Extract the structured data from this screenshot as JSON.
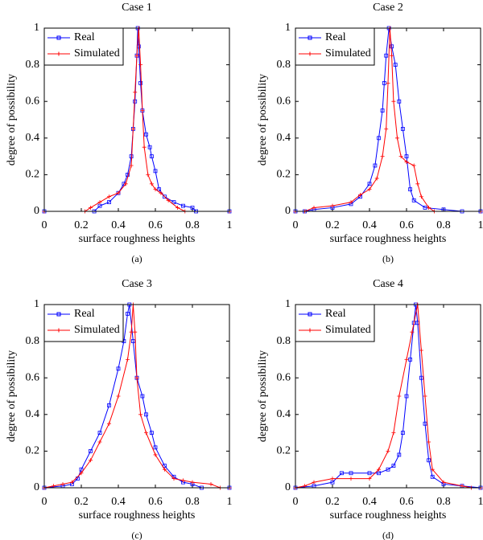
{
  "chart_data": [
    {
      "type": "line",
      "title": "Case 1",
      "xlabel": "surface roughness heights",
      "ylabel": "degree of possibility",
      "caption": "(a)",
      "xlim": [
        0,
        1
      ],
      "ylim": [
        0,
        1
      ],
      "xticks": [
        0,
        0.2,
        0.4,
        0.6,
        0.8,
        1
      ],
      "yticks": [
        0,
        0.2,
        0.4,
        0.6,
        0.8,
        1
      ],
      "legend": "upper left",
      "series": [
        {
          "name": "Real",
          "color": "#0000ff",
          "marker": "square",
          "x": [
            0,
            0.27,
            0.3,
            0.35,
            0.4,
            0.43,
            0.45,
            0.47,
            0.48,
            0.49,
            0.5,
            0.505,
            0.51,
            0.52,
            0.53,
            0.55,
            0.57,
            0.58,
            0.6,
            0.62,
            0.65,
            0.7,
            0.75,
            0.8,
            0.82,
            1
          ],
          "values": [
            0,
            0,
            0.03,
            0.05,
            0.1,
            0.15,
            0.2,
            0.3,
            0.45,
            0.6,
            0.85,
            1,
            0.9,
            0.7,
            0.55,
            0.42,
            0.35,
            0.3,
            0.22,
            0.12,
            0.08,
            0.05,
            0.03,
            0.02,
            0,
            0
          ]
        },
        {
          "name": "Simulated",
          "color": "#ff0000",
          "marker": "plus",
          "x": [
            0,
            0.22,
            0.25,
            0.3,
            0.35,
            0.4,
            0.44,
            0.47,
            0.48,
            0.49,
            0.5,
            0.51,
            0.52,
            0.53,
            0.54,
            0.56,
            0.58,
            0.6,
            0.63,
            0.67,
            0.72,
            0.76,
            1
          ],
          "values": [
            0,
            0,
            0.02,
            0.05,
            0.08,
            0.1,
            0.15,
            0.25,
            0.45,
            0.65,
            0.85,
            1,
            0.8,
            0.55,
            0.35,
            0.2,
            0.15,
            0.12,
            0.1,
            0.06,
            0.02,
            0,
            0
          ]
        }
      ]
    },
    {
      "type": "line",
      "title": "Case 2",
      "xlabel": "surface roughness heights",
      "ylabel": "degree of possibility",
      "caption": "(b)",
      "xlim": [
        0,
        1
      ],
      "ylim": [
        0,
        1
      ],
      "xticks": [
        0,
        0.2,
        0.4,
        0.6,
        0.8,
        1
      ],
      "yticks": [
        0,
        0.2,
        0.4,
        0.6,
        0.8,
        1
      ],
      "legend": "upper left",
      "series": [
        {
          "name": "Real",
          "color": "#0000ff",
          "marker": "square",
          "x": [
            0,
            0.05,
            0.1,
            0.2,
            0.3,
            0.35,
            0.4,
            0.43,
            0.45,
            0.47,
            0.48,
            0.49,
            0.505,
            0.52,
            0.54,
            0.56,
            0.58,
            0.6,
            0.62,
            0.64,
            0.7,
            0.8,
            0.9,
            1
          ],
          "values": [
            0,
            0,
            0.01,
            0.02,
            0.04,
            0.08,
            0.15,
            0.25,
            0.4,
            0.55,
            0.7,
            0.85,
            1,
            0.9,
            0.8,
            0.6,
            0.45,
            0.3,
            0.12,
            0.06,
            0.02,
            0.01,
            0,
            0
          ]
        },
        {
          "name": "Simulated",
          "color": "#ff0000",
          "marker": "plus",
          "x": [
            0,
            0.05,
            0.1,
            0.2,
            0.3,
            0.35,
            0.4,
            0.44,
            0.47,
            0.49,
            0.5,
            0.51,
            0.52,
            0.53,
            0.55,
            0.57,
            0.6,
            0.64,
            0.66,
            0.68,
            0.72,
            0.75,
            1
          ],
          "values": [
            0,
            0,
            0.02,
            0.03,
            0.05,
            0.09,
            0.12,
            0.18,
            0.3,
            0.45,
            0.7,
            1,
            0.85,
            0.6,
            0.4,
            0.3,
            0.27,
            0.25,
            0.15,
            0.08,
            0.02,
            0,
            0
          ]
        }
      ]
    },
    {
      "type": "line",
      "title": "Case 3",
      "xlabel": "surface roughness heights",
      "ylabel": "degree of possibility",
      "caption": "(c)",
      "xlim": [
        0,
        1
      ],
      "ylim": [
        0,
        1
      ],
      "xticks": [
        0,
        0.2,
        0.4,
        0.6,
        0.8,
        1
      ],
      "yticks": [
        0,
        0.2,
        0.4,
        0.6,
        0.8,
        1
      ],
      "legend": "upper left",
      "series": [
        {
          "name": "Real",
          "color": "#0000ff",
          "marker": "square",
          "x": [
            0,
            0.1,
            0.15,
            0.18,
            0.2,
            0.25,
            0.3,
            0.35,
            0.4,
            0.43,
            0.45,
            0.46,
            0.48,
            0.5,
            0.53,
            0.55,
            0.58,
            0.6,
            0.65,
            0.7,
            0.75,
            0.8,
            0.85,
            1
          ],
          "values": [
            0,
            0.01,
            0.02,
            0.05,
            0.1,
            0.2,
            0.3,
            0.45,
            0.65,
            0.8,
            0.95,
            1,
            0.8,
            0.6,
            0.5,
            0.4,
            0.3,
            0.22,
            0.12,
            0.06,
            0.03,
            0.02,
            0,
            0
          ]
        },
        {
          "name": "Simulated",
          "color": "#ff0000",
          "marker": "plus",
          "x": [
            0,
            0.05,
            0.1,
            0.15,
            0.2,
            0.25,
            0.3,
            0.35,
            0.4,
            0.45,
            0.47,
            0.48,
            0.49,
            0.5,
            0.52,
            0.55,
            0.6,
            0.65,
            0.7,
            0.75,
            0.8,
            0.9,
            0.95,
            1
          ],
          "values": [
            0,
            0.01,
            0.02,
            0.03,
            0.08,
            0.15,
            0.25,
            0.35,
            0.5,
            0.7,
            0.85,
            1,
            0.85,
            0.6,
            0.4,
            0.3,
            0.18,
            0.1,
            0.05,
            0.04,
            0.03,
            0.02,
            0,
            0
          ]
        }
      ]
    },
    {
      "type": "line",
      "title": "Case 4",
      "xlabel": "surface roughness heights",
      "ylabel": "degree of possibility",
      "caption": "(d)",
      "xlim": [
        0,
        1
      ],
      "ylim": [
        0,
        1
      ],
      "xticks": [
        0,
        0.2,
        0.4,
        0.6,
        0.8,
        1
      ],
      "yticks": [
        0,
        0.2,
        0.4,
        0.6,
        0.8,
        1
      ],
      "legend": "upper left",
      "series": [
        {
          "name": "Real",
          "color": "#0000ff",
          "marker": "square",
          "x": [
            0,
            0.1,
            0.2,
            0.25,
            0.3,
            0.4,
            0.45,
            0.5,
            0.53,
            0.56,
            0.58,
            0.6,
            0.62,
            0.64,
            0.65,
            0.66,
            0.68,
            0.7,
            0.72,
            0.74,
            0.8,
            0.9,
            1
          ],
          "values": [
            0,
            0.01,
            0.03,
            0.08,
            0.08,
            0.08,
            0.08,
            0.1,
            0.12,
            0.18,
            0.3,
            0.5,
            0.7,
            0.9,
            1,
            0.9,
            0.6,
            0.35,
            0.15,
            0.06,
            0.02,
            0.01,
            0
          ]
        },
        {
          "name": "Simulated",
          "color": "#ff0000",
          "marker": "plus",
          "x": [
            0,
            0.05,
            0.1,
            0.2,
            0.3,
            0.4,
            0.45,
            0.5,
            0.53,
            0.56,
            0.6,
            0.63,
            0.66,
            0.68,
            0.7,
            0.72,
            0.74,
            0.8,
            0.9,
            0.95,
            1
          ],
          "values": [
            0,
            0.01,
            0.03,
            0.05,
            0.05,
            0.05,
            0.1,
            0.2,
            0.3,
            0.5,
            0.7,
            0.85,
            1,
            0.75,
            0.5,
            0.25,
            0.1,
            0.03,
            0.01,
            0,
            0
          ]
        }
      ]
    }
  ]
}
